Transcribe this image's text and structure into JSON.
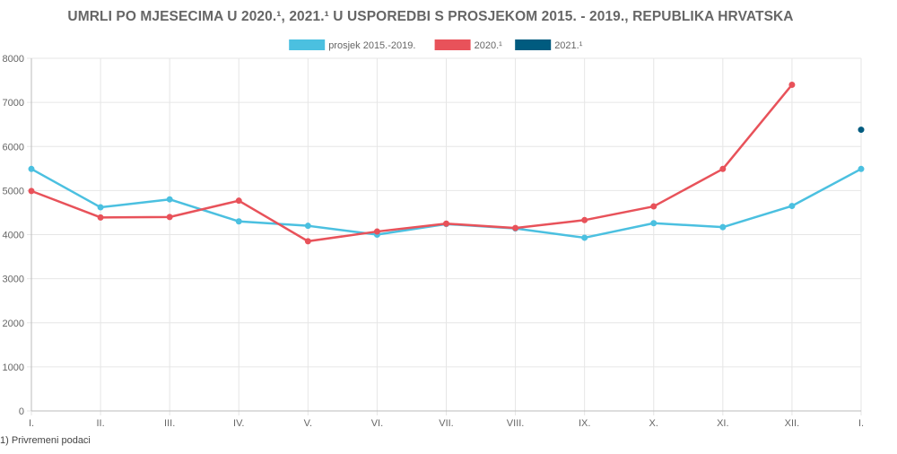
{
  "chart_data": {
    "type": "line",
    "title": "UMRLI PO MJESECIMA U 2020.¹, 2021.¹ U USPOREDBI S PROSJEKOM 2015. - 2019., REPUBLIKA HRVATSKA",
    "categories": [
      "I.",
      "II.",
      "III.",
      "IV.",
      "V.",
      "VI.",
      "VII.",
      "VIII.",
      "IX.",
      "X.",
      "XI.",
      "XII.",
      "I."
    ],
    "ylim": [
      0,
      8000
    ],
    "yticks": [
      0,
      1000,
      2000,
      3000,
      4000,
      5000,
      6000,
      7000,
      8000
    ],
    "grid": true,
    "legend_position": "top-center",
    "series": [
      {
        "name": "prosjek 2015.-2019.",
        "color": "#4bc0e0",
        "values": [
          5490,
          4620,
          4800,
          4300,
          4200,
          4000,
          4240,
          4140,
          3930,
          4260,
          4170,
          4650,
          5490
        ]
      },
      {
        "name": "2020.¹",
        "color": "#e8525a",
        "values": [
          4990,
          4390,
          4400,
          4770,
          3850,
          4070,
          4250,
          4150,
          4330,
          4640,
          5490,
          7400,
          null
        ]
      },
      {
        "name": "2021.¹",
        "color": "#005b7f",
        "values": [
          null,
          null,
          null,
          null,
          null,
          null,
          null,
          null,
          null,
          null,
          null,
          null,
          6380
        ]
      }
    ]
  },
  "footnote": "1) Privremeni podaci"
}
